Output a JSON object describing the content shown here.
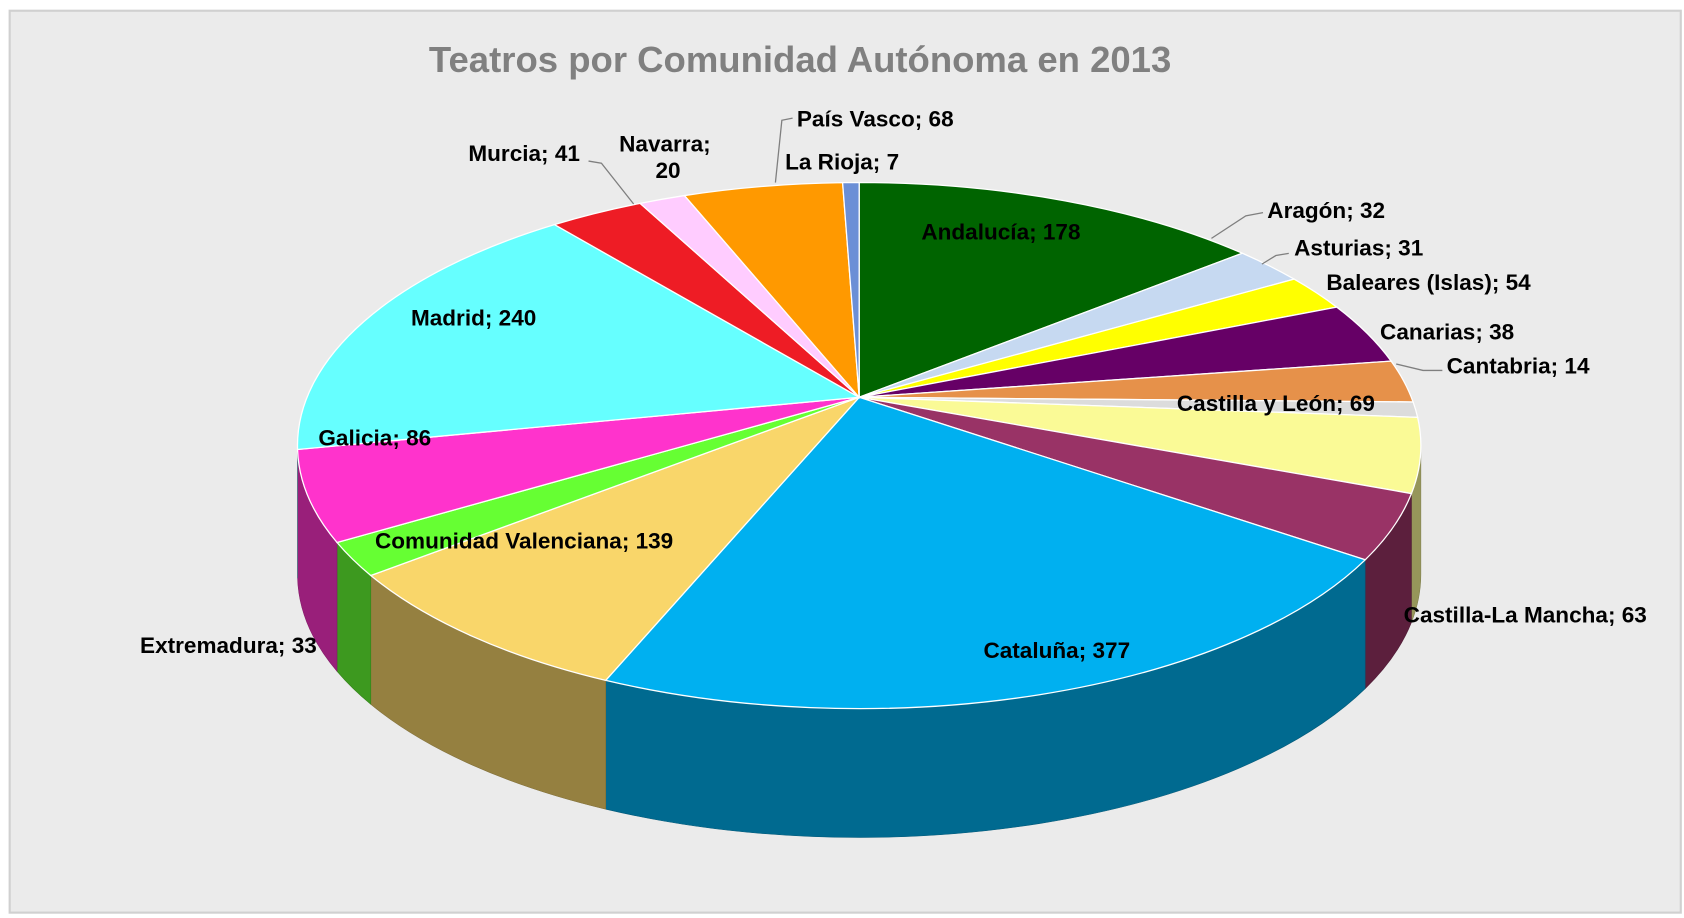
{
  "chart_data": {
    "type": "pie3d",
    "title": "Teatros por Comunidad Autónoma en 2013",
    "categories": [
      "Andalucía",
      "Aragón",
      "Asturias",
      "Baleares (Islas)",
      "Canarias",
      "Cantabria",
      "Castilla y León",
      "Castilla-La Mancha",
      "Cataluña",
      "Comunidad Valenciana",
      "Extremadura",
      "Galicia",
      "Madrid",
      "Murcia",
      "Navarra",
      "País Vasco",
      "La Rioja"
    ],
    "values": [
      178,
      32,
      31,
      54,
      38,
      14,
      69,
      63,
      377,
      139,
      33,
      86,
      240,
      41,
      20,
      68,
      7
    ],
    "colors": [
      "#006400",
      "#c6d9f1",
      "#ffff00",
      "#660066",
      "#e6914a",
      "#dcdcdc",
      "#fafa96",
      "#993366",
      "#00b0f0",
      "#f9d66a",
      "#66ff33",
      "#ff33cc",
      "#66ffff",
      "#ee1c25",
      "#ffccff",
      "#ff9900",
      "#6b8fd6"
    ],
    "label_separator": "; "
  }
}
